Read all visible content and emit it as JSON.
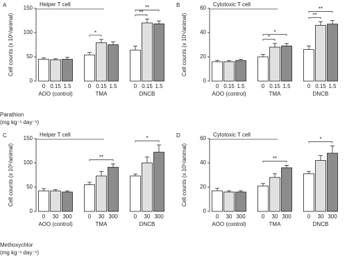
{
  "chart_data": [
    {
      "type": "bar",
      "panel": "A",
      "title": "Helper T cell",
      "y_label": "Cell counts (x 10⁵/animal)",
      "categories": [
        "AOO (control)",
        "TMA",
        "DNCB"
      ],
      "series": [
        {
          "name": "0",
          "color": "#ffffff",
          "values": [
            45,
            54,
            64
          ],
          "errors": [
            3,
            5,
            8
          ]
        },
        {
          "name": "0.15",
          "color": "#e0e0e0",
          "values": [
            44,
            79,
            120
          ],
          "errors": [
            2,
            7,
            8
          ]
        },
        {
          "name": "1.5",
          "color": "#8c8c8c",
          "values": [
            45,
            75,
            118
          ],
          "errors": [
            4,
            6,
            6
          ]
        }
      ],
      "ylim": [
        0,
        150
      ],
      "yticks": [
        0,
        50,
        100,
        150
      ],
      "x_label": "Parathion",
      "x_unit": "(mg kg⁻¹ day⁻¹)",
      "significance": [
        {
          "label": "*",
          "category": "TMA",
          "from": "0",
          "to": "0.15"
        },
        {
          "label": "**",
          "category": "DNCB",
          "from": "0",
          "to": "0.15"
        },
        {
          "label": "**",
          "category": "DNCB",
          "from": "0",
          "to": "1.5"
        }
      ]
    },
    {
      "type": "bar",
      "panel": "B",
      "title": "Cytotoxic T cell",
      "y_label": "Cell counts (x 10⁵/animal)",
      "categories": [
        "AOO (control)",
        "TMA",
        "DNCB"
      ],
      "series": [
        {
          "name": "0",
          "color": "#ffffff",
          "values": [
            16,
            20,
            26
          ],
          "errors": [
            1,
            2,
            3
          ]
        },
        {
          "name": "0.15",
          "color": "#e0e0e0",
          "values": [
            16,
            28,
            46
          ],
          "errors": [
            1,
            3,
            3
          ]
        },
        {
          "name": "1.5",
          "color": "#8c8c8c",
          "values": [
            17,
            29,
            47
          ],
          "errors": [
            1,
            2,
            3
          ]
        }
      ],
      "ylim": [
        0,
        60
      ],
      "yticks": [
        0,
        20,
        40,
        60
      ],
      "significance": [
        {
          "label": "*",
          "category": "TMA",
          "from": "0",
          "to": "0.15"
        },
        {
          "label": "*",
          "category": "TMA",
          "from": "0",
          "to": "1.5"
        },
        {
          "label": "**",
          "category": "DNCB",
          "from": "0",
          "to": "0.15"
        },
        {
          "label": "**",
          "category": "DNCB",
          "from": "0",
          "to": "1.5"
        }
      ]
    },
    {
      "type": "bar",
      "panel": "C",
      "title": "Helper T cell",
      "y_label": "Cell counts (x 10⁵/animal)",
      "categories": [
        "AOO (control)",
        "TMA",
        "DNCB"
      ],
      "series": [
        {
          "name": "0",
          "color": "#ffffff",
          "values": [
            42,
            55,
            73
          ],
          "errors": [
            5,
            5,
            4
          ]
        },
        {
          "name": "30",
          "color": "#e0e0e0",
          "values": [
            42,
            73,
            100
          ],
          "errors": [
            3,
            9,
            12
          ]
        },
        {
          "name": "300",
          "color": "#8c8c8c",
          "values": [
            40,
            91,
            122
          ],
          "errors": [
            2,
            7,
            15
          ]
        }
      ],
      "ylim": [
        0,
        150
      ],
      "yticks": [
        0,
        50,
        100,
        150
      ],
      "x_label": "Methoxychlor",
      "x_unit": "(mg kg⁻¹ day⁻¹)",
      "significance": [
        {
          "label": "**",
          "category": "TMA",
          "from": "0",
          "to": "300"
        },
        {
          "label": "*",
          "category": "DNCB",
          "from": "0",
          "to": "300"
        }
      ]
    },
    {
      "type": "bar",
      "panel": "D",
      "title": "Cytotoxic T cell",
      "y_label": "Cell counts (x 10⁵/animal)",
      "categories": [
        "AOO (control)",
        "TMA",
        "DNCB"
      ],
      "series": [
        {
          "name": "0",
          "color": "#ffffff",
          "values": [
            17,
            21,
            31
          ],
          "errors": [
            2,
            2,
            2
          ]
        },
        {
          "name": "30",
          "color": "#e0e0e0",
          "values": [
            16,
            28,
            42
          ],
          "errors": [
            1,
            3,
            4
          ]
        },
        {
          "name": "300",
          "color": "#8c8c8c",
          "values": [
            16,
            36,
            48
          ],
          "errors": [
            1,
            2,
            6
          ]
        }
      ],
      "ylim": [
        0,
        60
      ],
      "yticks": [
        0,
        20,
        40,
        60
      ],
      "significance": [
        {
          "label": "**",
          "category": "TMA",
          "from": "0",
          "to": "300"
        },
        {
          "label": "*",
          "category": "DNCB",
          "from": "0",
          "to": "300"
        }
      ]
    }
  ]
}
